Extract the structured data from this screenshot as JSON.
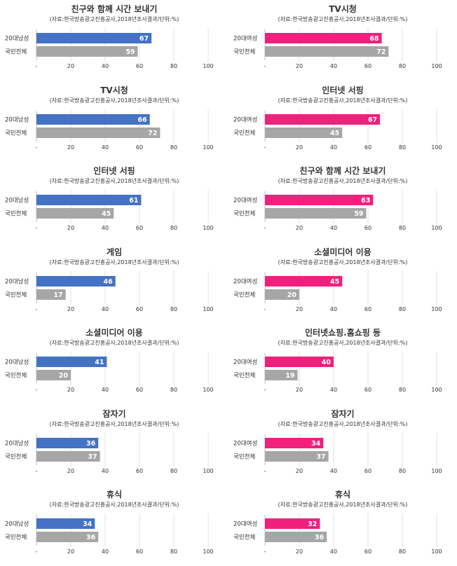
{
  "source_note": "(자료:한국방송광고진흥공사,2018년조사결과/단위:%)",
  "chart_data": [
    {
      "type": "bar",
      "orientation": "horizontal",
      "title": "친구와 함께 시간 보내기",
      "categories": [
        "20대남성",
        "국민전체"
      ],
      "values": [
        67,
        59
      ],
      "colors": [
        "#4472C4",
        "#A6A6A6"
      ],
      "xlim": [
        0,
        100
      ],
      "xticks": [
        "-",
        "20",
        "40",
        "60",
        "80",
        "100"
      ]
    },
    {
      "type": "bar",
      "orientation": "horizontal",
      "title": "TV시청",
      "categories": [
        "20대여성",
        "국민전체"
      ],
      "values": [
        68,
        72
      ],
      "colors": [
        "#F0207C",
        "#A6A6A6"
      ],
      "xlim": [
        0,
        100
      ],
      "xticks": [
        "-",
        "20",
        "40",
        "60",
        "80",
        "100"
      ]
    },
    {
      "type": "bar",
      "orientation": "horizontal",
      "title": "TV시청",
      "categories": [
        "20대남성",
        "국민전체"
      ],
      "values": [
        66,
        72
      ],
      "colors": [
        "#4472C4",
        "#A6A6A6"
      ],
      "xlim": [
        0,
        100
      ],
      "xticks": [
        "-",
        "20",
        "40",
        "60",
        "80",
        "100"
      ]
    },
    {
      "type": "bar",
      "orientation": "horizontal",
      "title": "인터넷 서핑",
      "categories": [
        "20대여성",
        "국민전체"
      ],
      "values": [
        67,
        45
      ],
      "colors": [
        "#F0207C",
        "#A6A6A6"
      ],
      "xlim": [
        0,
        100
      ],
      "xticks": [
        "-",
        "20",
        "40",
        "60",
        "80",
        "100"
      ]
    },
    {
      "type": "bar",
      "orientation": "horizontal",
      "title": "인터넷 서핑",
      "categories": [
        "20대남성",
        "국민전체"
      ],
      "values": [
        61,
        45
      ],
      "colors": [
        "#4472C4",
        "#A6A6A6"
      ],
      "xlim": [
        0,
        100
      ],
      "xticks": [
        "-",
        "20",
        "40",
        "60",
        "80",
        "100"
      ]
    },
    {
      "type": "bar",
      "orientation": "horizontal",
      "title": "친구와 함께 시간 보내기",
      "categories": [
        "20대여성",
        "국민전체"
      ],
      "values": [
        63,
        59
      ],
      "colors": [
        "#F0207C",
        "#A6A6A6"
      ],
      "xlim": [
        0,
        100
      ],
      "xticks": [
        "-",
        "20",
        "40",
        "60",
        "80",
        "100"
      ]
    },
    {
      "type": "bar",
      "orientation": "horizontal",
      "title": "게임",
      "categories": [
        "20대남성",
        "국민전체"
      ],
      "values": [
        46,
        17
      ],
      "colors": [
        "#4472C4",
        "#A6A6A6"
      ],
      "xlim": [
        0,
        100
      ],
      "xticks": [
        "-",
        "20",
        "40",
        "60",
        "80",
        "100"
      ]
    },
    {
      "type": "bar",
      "orientation": "horizontal",
      "title": "소셜미디어 이용",
      "categories": [
        "20대여성",
        "국민전체"
      ],
      "values": [
        45,
        20
      ],
      "colors": [
        "#F0207C",
        "#A6A6A6"
      ],
      "xlim": [
        0,
        100
      ],
      "xticks": [
        "-",
        "20",
        "40",
        "60",
        "80",
        "100"
      ]
    },
    {
      "type": "bar",
      "orientation": "horizontal",
      "title": "소셜미디어 이용",
      "categories": [
        "20대남성",
        "국민전체"
      ],
      "values": [
        41,
        20
      ],
      "colors": [
        "#4472C4",
        "#A6A6A6"
      ],
      "xlim": [
        0,
        100
      ],
      "xticks": [
        "-",
        "20",
        "40",
        "60",
        "80",
        "100"
      ]
    },
    {
      "type": "bar",
      "orientation": "horizontal",
      "title": "인터넷쇼핑.홈쇼핑 등",
      "categories": [
        "20대여성",
        "국민전체"
      ],
      "values": [
        40,
        19
      ],
      "colors": [
        "#F0207C",
        "#A6A6A6"
      ],
      "xlim": [
        0,
        100
      ],
      "xticks": [
        "-",
        "20",
        "40",
        "60",
        "80",
        "100"
      ]
    },
    {
      "type": "bar",
      "orientation": "horizontal",
      "title": "잠자기",
      "categories": [
        "20대남성",
        "국민전체"
      ],
      "values": [
        36,
        37
      ],
      "colors": [
        "#4472C4",
        "#A6A6A6"
      ],
      "xlim": [
        0,
        100
      ],
      "xticks": [
        "-",
        "20",
        "40",
        "60",
        "80",
        "100"
      ]
    },
    {
      "type": "bar",
      "orientation": "horizontal",
      "title": "잠자기",
      "categories": [
        "20대여성",
        "국민전체"
      ],
      "values": [
        34,
        37
      ],
      "colors": [
        "#F0207C",
        "#A6A6A6"
      ],
      "xlim": [
        0,
        100
      ],
      "xticks": [
        "-",
        "20",
        "40",
        "60",
        "80",
        "100"
      ]
    },
    {
      "type": "bar",
      "orientation": "horizontal",
      "title": "휴식",
      "categories": [
        "20대남성",
        "국민전체"
      ],
      "values": [
        34,
        36
      ],
      "colors": [
        "#4472C4",
        "#A6A6A6"
      ],
      "xlim": [
        0,
        100
      ],
      "xticks": [
        "-",
        "20",
        "40",
        "60",
        "80",
        "100"
      ]
    },
    {
      "type": "bar",
      "orientation": "horizontal",
      "title": "휴식",
      "categories": [
        "20대여성",
        "국민전체"
      ],
      "values": [
        32,
        36
      ],
      "colors": [
        "#F0207C",
        "#A6A6A6"
      ],
      "xlim": [
        0,
        100
      ],
      "xticks": [
        "-",
        "20",
        "40",
        "60",
        "80",
        "100"
      ]
    }
  ]
}
